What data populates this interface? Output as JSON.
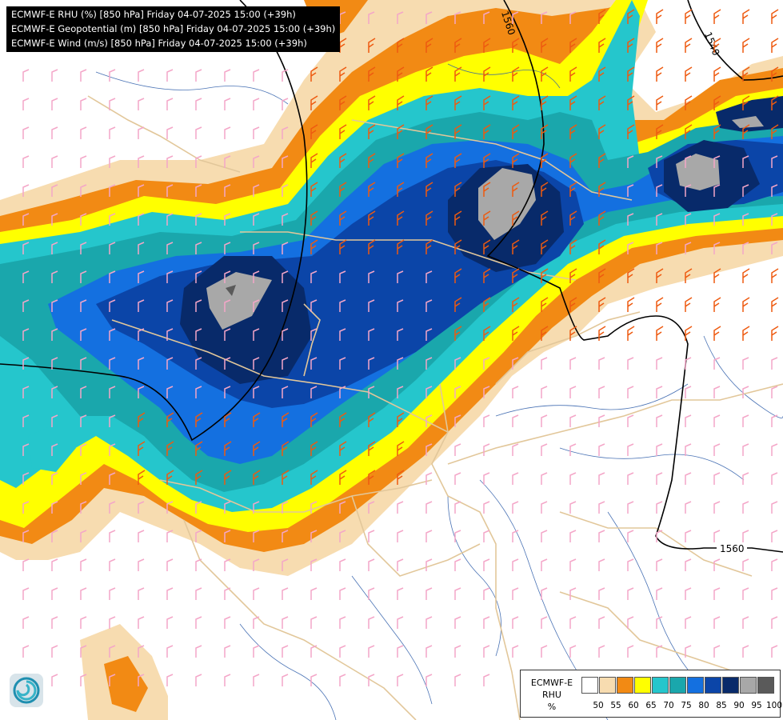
{
  "title_lines": [
    "ECMWF-E RHU (%) [850 hPa] Friday 04-07-2025 15:00 (+39h)",
    "ECMWF-E Geopotential (m) [850 hPa] Friday 04-07-2025 15:00 (+39h)",
    "ECMWF-E Wind (m/s) [850 hPa] Friday 04-07-2025 15:00 (+39h)"
  ],
  "legend": {
    "title_lines": [
      "ECMWF-E",
      "RHU",
      "%"
    ],
    "thresholds": [
      "50",
      "55",
      "60",
      "65",
      "70",
      "75",
      "80",
      "85",
      "90",
      "95",
      "100"
    ],
    "colors": [
      "#ffffff",
      "#f7dcb0",
      "#f28a14",
      "#ffff00",
      "#25c6cc",
      "#1aa7ac",
      "#1470e0",
      "#0b45a8",
      "#082a6a",
      "#a8a8a8",
      "#5a5a5a"
    ]
  },
  "contours": [
    {
      "label": "1560",
      "units": "m"
    },
    {
      "label": "1540",
      "units": "m"
    },
    {
      "label": "1560",
      "units": "m"
    }
  ],
  "logo": {
    "icon": "ecmwf-logo-icon"
  },
  "wind_barb_colors": {
    "light": "#f4a6c8",
    "strong": "#ee5a10"
  },
  "overlay_colors": {
    "rivers": "#2a5aa8",
    "borders": "#e2c79a",
    "geopotential": "#000000"
  }
}
